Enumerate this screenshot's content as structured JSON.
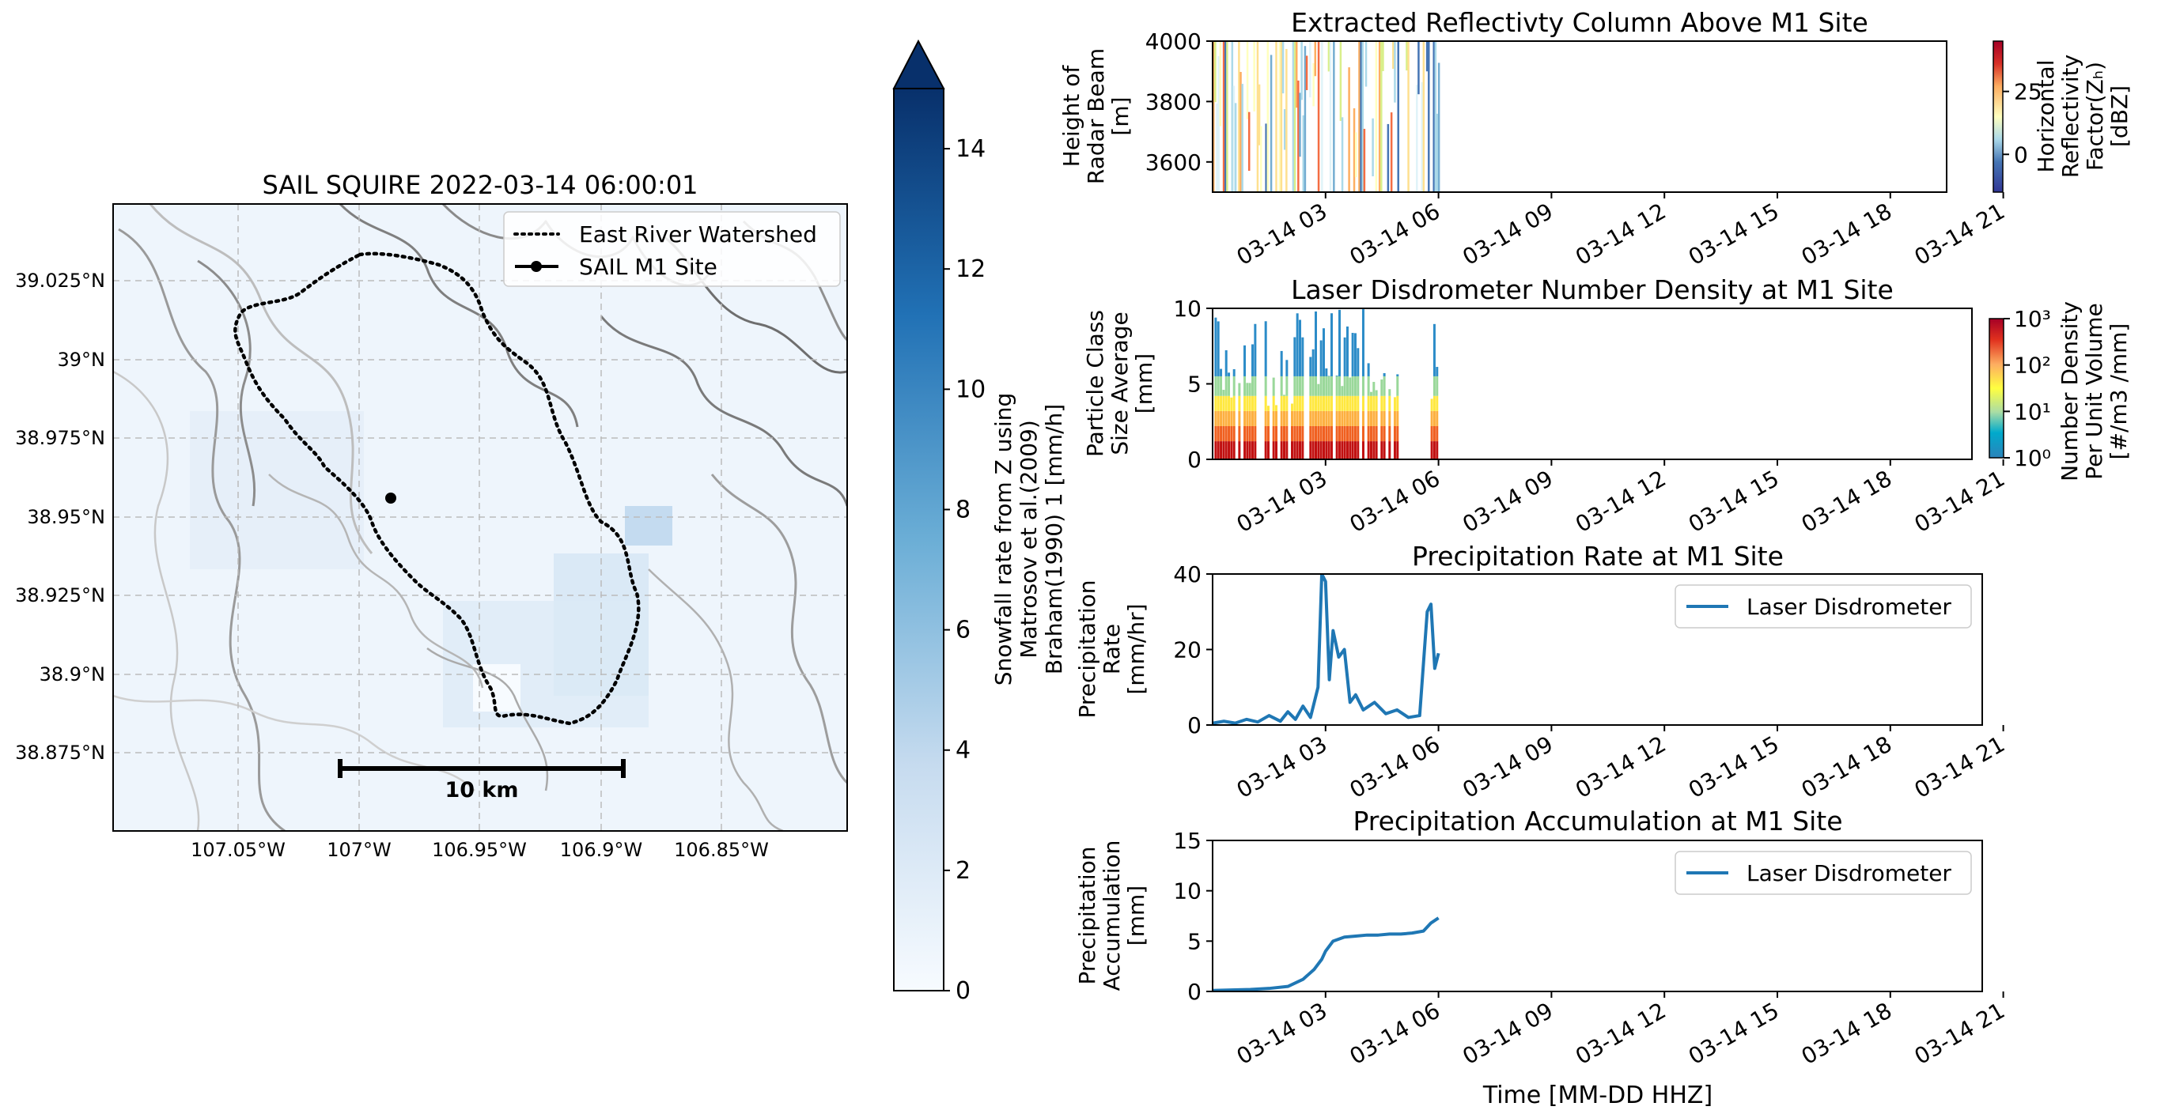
{
  "map": {
    "title": "SAIL SQUIRE  2022-03-14 06:00:01",
    "legend": {
      "watershed": "East River Watershed",
      "site": "SAIL M1 Site"
    },
    "lat_ticks": [
      "39.025°N",
      "39°N",
      "38.975°N",
      "38.95°N",
      "38.925°N",
      "38.9°N",
      "38.875°N"
    ],
    "lon_ticks": [
      "107.05°W",
      "107°W",
      "106.95°W",
      "106.9°W",
      "106.85°W"
    ],
    "scalebar": "10 km",
    "colorbar": {
      "label_lines": [
        "Snowfall rate from Z using",
        "Matrosov et al.(2009)",
        "Braham(1990) 1 [mm/h]"
      ],
      "ticks": [
        "0",
        "2",
        "4",
        "6",
        "8",
        "10",
        "12",
        "14"
      ],
      "range": [
        0,
        15
      ],
      "colors": [
        "#f7fbff",
        "#c6dbef",
        "#6baed6",
        "#2171b5",
        "#08306b"
      ]
    }
  },
  "time_ticks": [
    "03-14 03",
    "03-14 06",
    "03-14 09",
    "03-14 12",
    "03-14 15",
    "03-14 18",
    "03-14 21"
  ],
  "xlabel": "Time [MM-DD HHZ]",
  "chart_data": [
    {
      "type": "heatmap",
      "title": "Extracted Reflectivty Column Above M1 Site",
      "ylabel_lines": [
        "Height of",
        "Radar Beam",
        "[m]"
      ],
      "yticks": [
        "3600",
        "3800",
        "4000"
      ],
      "ylim": [
        3500,
        4000
      ],
      "x_range_hours": [
        0,
        24
      ],
      "data_hours": [
        0,
        6
      ],
      "colorbar": {
        "label_lines": [
          "Horizontal",
          "Reflectivity",
          "Factor(Zₕ)",
          "[dBZ]"
        ],
        "ticks": [
          "0",
          "25"
        ],
        "range": [
          -15,
          45
        ]
      }
    },
    {
      "type": "heatmap",
      "title": "Laser Disdrometer Number Density at M1 Site",
      "ylabel_lines": [
        "Particle Class",
        "Size Average",
        "[mm]"
      ],
      "yticks": [
        "0",
        "5",
        "10"
      ],
      "ylim": [
        0,
        10
      ],
      "x_range_hours": [
        0,
        24
      ],
      "data_hours": [
        0,
        6
      ],
      "colorbar": {
        "label_lines": [
          "Number Density",
          "Per Unit Volume",
          "[#/m3 /mm]"
        ],
        "ticks": [
          "10⁰",
          "10¹",
          "10²",
          "10³"
        ],
        "scale": "log",
        "range": [
          1,
          1000
        ]
      }
    },
    {
      "type": "line",
      "title": "Precipitation Rate at M1 Site",
      "ylabel_lines": [
        "Precipitation",
        "Rate",
        "[mm/hr]"
      ],
      "yticks": [
        "0",
        "20",
        "40"
      ],
      "ylim": [
        0,
        40
      ],
      "legend": "Laser Disdrometer",
      "series": [
        {
          "name": "Laser Disdrometer",
          "color": "#1f77b4",
          "x": [
            0,
            0.3,
            0.6,
            0.9,
            1.2,
            1.5,
            1.8,
            2.0,
            2.2,
            2.4,
            2.6,
            2.8,
            2.9,
            3.0,
            3.1,
            3.2,
            3.35,
            3.5,
            3.65,
            3.8,
            4.0,
            4.3,
            4.6,
            4.9,
            5.2,
            5.5,
            5.7,
            5.8,
            5.9,
            6.0
          ],
          "y": [
            0.5,
            1.0,
            0.5,
            1.5,
            0.8,
            2.5,
            1.0,
            3.5,
            1.5,
            5.0,
            2.0,
            10.0,
            40.0,
            38.0,
            12.0,
            25.0,
            18.0,
            20.0,
            6.0,
            8.0,
            4.0,
            6.0,
            3.0,
            4.0,
            2.0,
            2.5,
            30.0,
            32.0,
            15.0,
            19.0
          ]
        }
      ]
    },
    {
      "type": "line",
      "title": "Precipitation Accumulation at M1 Site",
      "ylabel_lines": [
        "Precipitation",
        "Accumulation",
        "[mm]"
      ],
      "yticks": [
        "0",
        "5",
        "10",
        "15"
      ],
      "ylim": [
        0,
        15
      ],
      "legend": "Laser Disdrometer",
      "series": [
        {
          "name": "Laser Disdrometer",
          "color": "#1f77b4",
          "x": [
            0,
            0.5,
            1.0,
            1.5,
            2.0,
            2.4,
            2.7,
            2.9,
            3.0,
            3.2,
            3.5,
            3.8,
            4.1,
            4.4,
            4.7,
            5.0,
            5.3,
            5.6,
            5.8,
            6.0
          ],
          "y": [
            0.1,
            0.15,
            0.2,
            0.3,
            0.5,
            1.2,
            2.2,
            3.2,
            4.0,
            5.0,
            5.4,
            5.5,
            5.6,
            5.6,
            5.7,
            5.7,
            5.8,
            6.0,
            6.8,
            7.3
          ]
        }
      ]
    }
  ]
}
